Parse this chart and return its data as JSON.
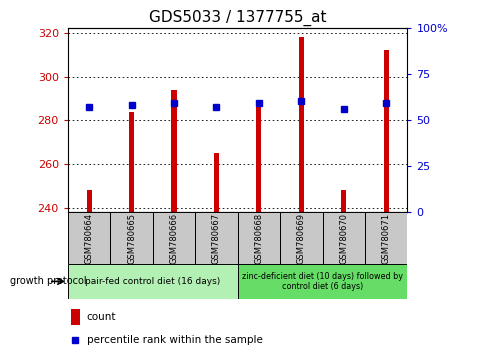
{
  "title": "GDS5033 / 1377755_at",
  "samples": [
    "GSM780664",
    "GSM780665",
    "GSM780666",
    "GSM780667",
    "GSM780668",
    "GSM780669",
    "GSM780670",
    "GSM780671"
  ],
  "count_values": [
    248,
    284,
    294,
    265,
    289,
    318,
    248,
    312
  ],
  "percentile_values": [
    286,
    287,
    288,
    286,
    288,
    289,
    285,
    288
  ],
  "ylim_left": [
    238,
    322
  ],
  "yticks_left": [
    240,
    260,
    280,
    300,
    320
  ],
  "yticks_right": [
    0,
    25,
    50,
    75,
    100
  ],
  "ytick_labels_right": [
    "0",
    "25",
    "50",
    "75",
    "100%"
  ],
  "bar_color": "#cc0000",
  "dot_color": "#0000cc",
  "bar_bottom": 238,
  "group1_label": "pair-fed control diet (16 days)",
  "group2_label": "zinc-deficient diet (10 days) followed by\ncontrol diet (6 days)",
  "group1_indices": [
    0,
    1,
    2,
    3
  ],
  "group2_indices": [
    4,
    5,
    6,
    7
  ],
  "group1_color": "#b3f0b3",
  "group2_color": "#66dd66",
  "protocol_label": "growth protocol",
  "legend_count_label": "count",
  "legend_percentile_label": "percentile rank within the sample",
  "left_tick_color": "#cc0000",
  "right_tick_color": "#0000cc",
  "title_fontsize": 11,
  "tick_fontsize": 8,
  "bar_width": 0.12
}
